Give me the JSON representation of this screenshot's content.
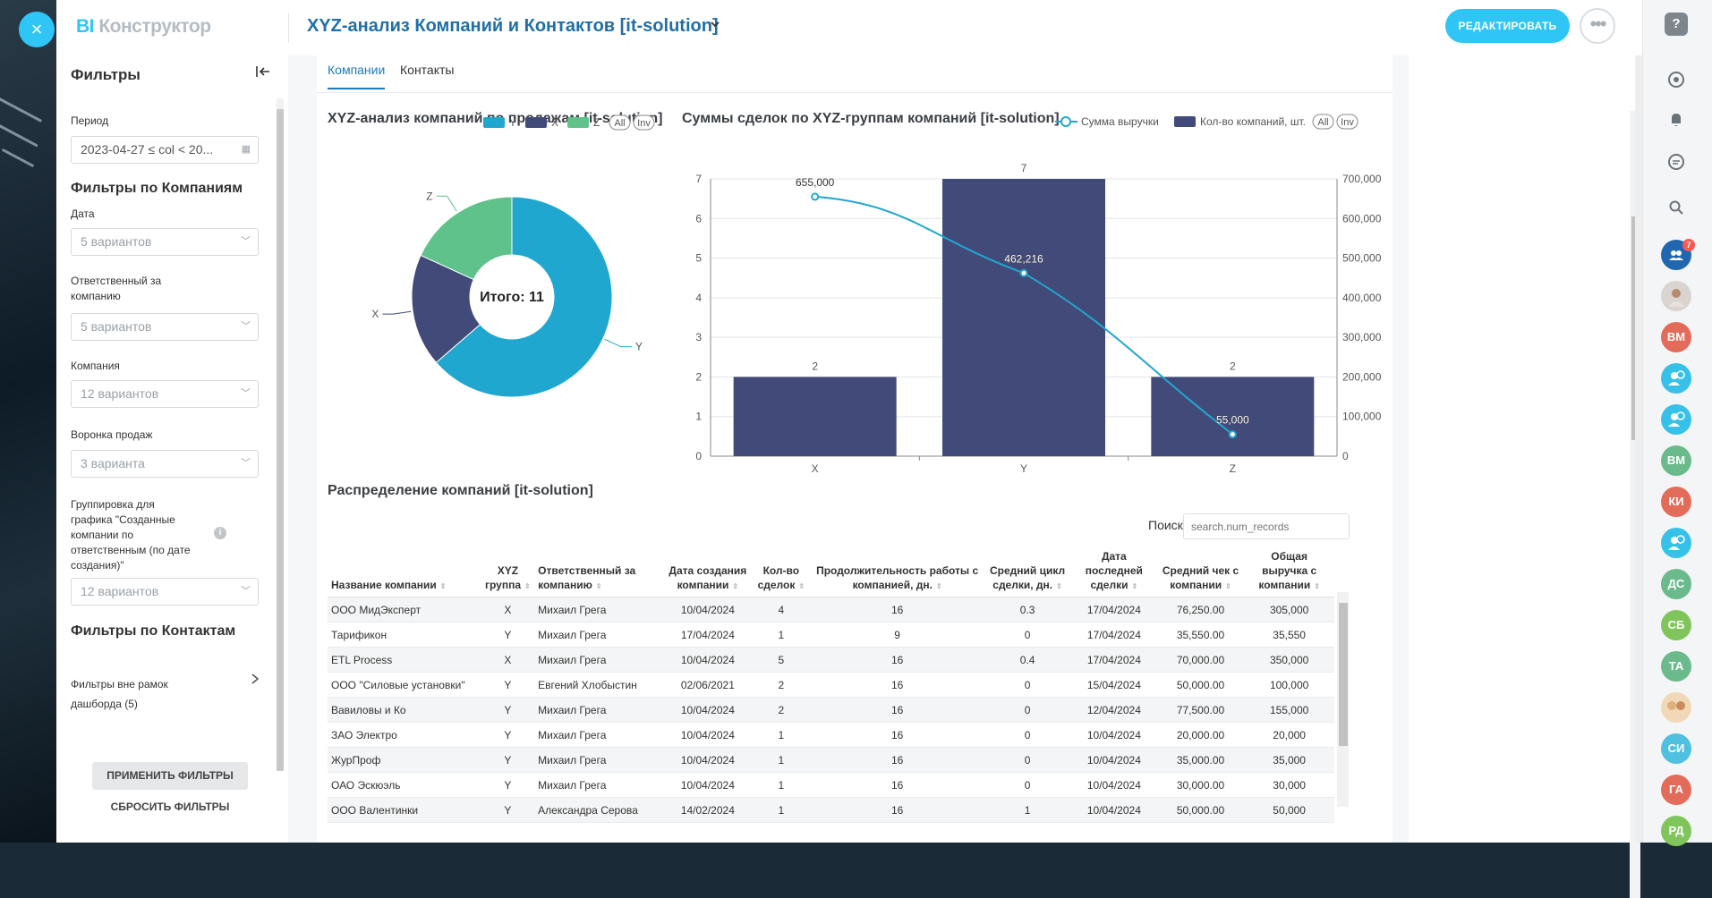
{
  "header": {
    "close_icon": "×",
    "brand_bi": "BI",
    "brand_name": "Конструктор",
    "dashboard_title": "XYZ-анализ Компаний и Контактов [it-solution]",
    "edit_label": "РЕДАКТИРОВАТЬ",
    "more_icon": "•••"
  },
  "sidebar": {
    "title": "Фильтры",
    "period_label": "Период",
    "period_value": "2023-04-27 ≤ col < 20...",
    "companies_title": "Фильтры по Компаниям",
    "date_label": "Дата",
    "date_placeholder": "5 вариантов",
    "responsible_label": "Ответственный за компанию",
    "responsible_placeholder": "5 вариантов",
    "company_label": "Компания",
    "company_placeholder": "12 вариантов",
    "funnel_label": "Воронка продаж",
    "funnel_placeholder": "3 варианта",
    "grouping_label": "Группировка для графика \"Созданные компании по ответственным (по дате создания)\"",
    "grouping_placeholder": "12 вариантов",
    "contacts_title": "Фильтры по Контактам",
    "outer_filters": "Фильтры вне рамок дашборда (5)",
    "apply_label": "ПРИМЕНИТЬ ФИЛЬТРЫ",
    "reset_label": "СБРОСИТЬ ФИЛЬТРЫ"
  },
  "tabs": [
    "Компании",
    "Контакты"
  ],
  "pie_chart": {
    "title": "XYZ-анализ компаний по продажам [it-solution]",
    "legend_all": "All",
    "legend_inv": "Inv",
    "center_label": "Итого: 11",
    "colors": {
      "Y": "#20a7cf",
      "X": "#424a79",
      "Z": "#5ec28a"
    }
  },
  "bar_chart": {
    "title": "Суммы сделок по XYZ-группам компаний [it-solution]",
    "legend_line": "Сумма выручки",
    "legend_bar": "Кол-во компаний, шт.",
    "legend_all": "All",
    "legend_inv": "Inv",
    "bar_color": "#424a79",
    "line_color": "#20a7cf"
  },
  "chart_data": [
    {
      "type": "pie",
      "title": "XYZ-анализ компаний по продажам [it-solution]",
      "categories": [
        "Y",
        "X",
        "Z"
      ],
      "values": [
        7,
        2,
        2
      ],
      "total_label": "Итого: 11"
    },
    {
      "type": "bar",
      "title": "Суммы сделок по XYZ-группам компаний [it-solution]",
      "categories": [
        "X",
        "Y",
        "Z"
      ],
      "series": [
        {
          "name": "Кол-во компаний, шт.",
          "type": "bar",
          "values": [
            2,
            7,
            2
          ],
          "axis": "left"
        },
        {
          "name": "Сумма выручки",
          "type": "line",
          "values": [
            655000,
            462216,
            55000
          ],
          "value_labels": [
            "655,000",
            "462,216",
            "55,000"
          ],
          "axis": "right"
        }
      ],
      "ylim_left": [
        0,
        7
      ],
      "yticks_left": [
        "0",
        "1",
        "2",
        "3",
        "4",
        "5",
        "6",
        "7"
      ],
      "ylim_right": [
        0,
        700000
      ],
      "yticks_right": [
        "0",
        "100,000",
        "200,000",
        "300,000",
        "400,000",
        "500,000",
        "600,000",
        "700,000"
      ]
    }
  ],
  "table": {
    "title": "Распределение компаний [it-solution]",
    "search_label": "Поиск",
    "search_placeholder": "search.num_records",
    "columns": [
      "Название компании",
      "XYZ группа",
      "Ответственный за компанию",
      "Дата создания компании",
      "Кол-во сделок",
      "Продолжительность работы с компанией, дн.",
      "Средний цикл сделки, дн.",
      "Дата последней сделки",
      "Средний чек с компании",
      "Общая выручка с компании"
    ],
    "rows": [
      [
        "ООО МидЭксперт",
        "X",
        "Михаил Грега",
        "10/04/2024",
        "4",
        "16",
        "0.3",
        "17/04/2024",
        "76,250.00",
        "305,000"
      ],
      [
        "Тарификон",
        "Y",
        "Михаил Грега",
        "17/04/2024",
        "1",
        "9",
        "0",
        "17/04/2024",
        "35,550.00",
        "35,550"
      ],
      [
        "ETL Process",
        "X",
        "Михаил Грега",
        "10/04/2024",
        "5",
        "16",
        "0.4",
        "17/04/2024",
        "70,000.00",
        "350,000"
      ],
      [
        "ООО \"Силовые установки\"",
        "Y",
        "Евгений Хлобыстин",
        "02/06/2021",
        "2",
        "16",
        "0",
        "15/04/2024",
        "50,000.00",
        "100,000"
      ],
      [
        "Вавиловы и Ко",
        "Y",
        "Михаил Грега",
        "10/04/2024",
        "2",
        "16",
        "0",
        "12/04/2024",
        "77,500.00",
        "155,000"
      ],
      [
        "ЗАО Электро",
        "Y",
        "Михаил Грега",
        "10/04/2024",
        "1",
        "16",
        "0",
        "10/04/2024",
        "20,000.00",
        "20,000"
      ],
      [
        "ЖурПроф",
        "Y",
        "Михаил Грега",
        "10/04/2024",
        "1",
        "16",
        "0",
        "10/04/2024",
        "35,000.00",
        "35,000"
      ],
      [
        "ОАО Эскюэль",
        "Y",
        "Михаил Грега",
        "10/04/2024",
        "1",
        "16",
        "0",
        "10/04/2024",
        "30,000.00",
        "30,000"
      ],
      [
        "ООО Валентинки",
        "Y",
        "Александра Серова",
        "14/02/2024",
        "1",
        "16",
        "1",
        "10/04/2024",
        "50,000.00",
        "50,000"
      ]
    ]
  },
  "rightbar": {
    "help_icon": "?",
    "badge_count": "7",
    "avatars": [
      {
        "initials": "ВМ",
        "color": "#e36b5a"
      },
      {
        "initials": "ВМ",
        "color": "#6aba8c"
      },
      {
        "initials": "КИ",
        "color": "#e36b5a"
      },
      {
        "initials": "ДС",
        "color": "#6aba8c"
      },
      {
        "initials": "СБ",
        "color": "#80c55c"
      },
      {
        "initials": "ТА",
        "color": "#6aba8c"
      },
      {
        "initials": "СИ",
        "color": "#4fc0e0"
      },
      {
        "initials": "ГА",
        "color": "#e36b5a"
      },
      {
        "initials": "РД",
        "color": "#80c55c"
      }
    ]
  }
}
